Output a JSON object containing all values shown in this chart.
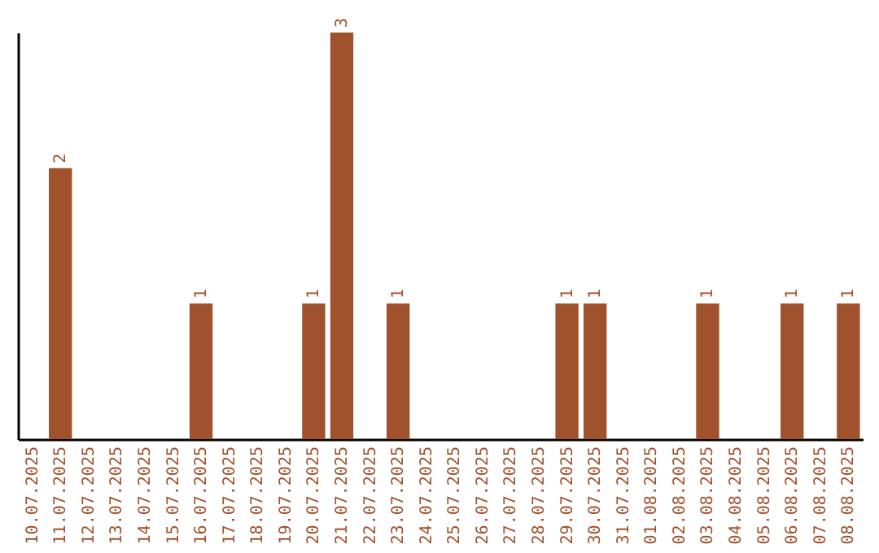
{
  "chart_data": {
    "type": "bar",
    "categories": [
      "10.07.2025",
      "11.07.2025",
      "12.07.2025",
      "13.07.2025",
      "14.07.2025",
      "15.07.2025",
      "16.07.2025",
      "17.07.2025",
      "18.07.2025",
      "19.07.2025",
      "20.07.2025",
      "21.07.2025",
      "22.07.2025",
      "23.07.2025",
      "24.07.2025",
      "25.07.2025",
      "26.07.2025",
      "27.07.2025",
      "28.07.2025",
      "29.07.2025",
      "30.07.2025",
      "31.07.2025",
      "01.08.2025",
      "02.08.2025",
      "03.08.2025",
      "04.08.2025",
      "05.08.2025",
      "06.08.2025",
      "07.08.2025",
      "08.08.2025"
    ],
    "values": [
      0,
      2,
      0,
      0,
      0,
      0,
      1,
      0,
      0,
      0,
      1,
      3,
      0,
      1,
      0,
      0,
      0,
      0,
      0,
      1,
      1,
      0,
      0,
      0,
      1,
      0,
      0,
      1,
      0,
      1
    ],
    "value_labels": [
      null,
      "2",
      null,
      null,
      null,
      null,
      "1",
      null,
      null,
      null,
      "1",
      "3",
      null,
      "1",
      null,
      null,
      null,
      null,
      null,
      "1",
      "1",
      null,
      null,
      null,
      "1",
      null,
      null,
      "1",
      null,
      "1"
    ],
    "color": "#a0522d",
    "tick_labels": "x",
    "grid": false
  }
}
